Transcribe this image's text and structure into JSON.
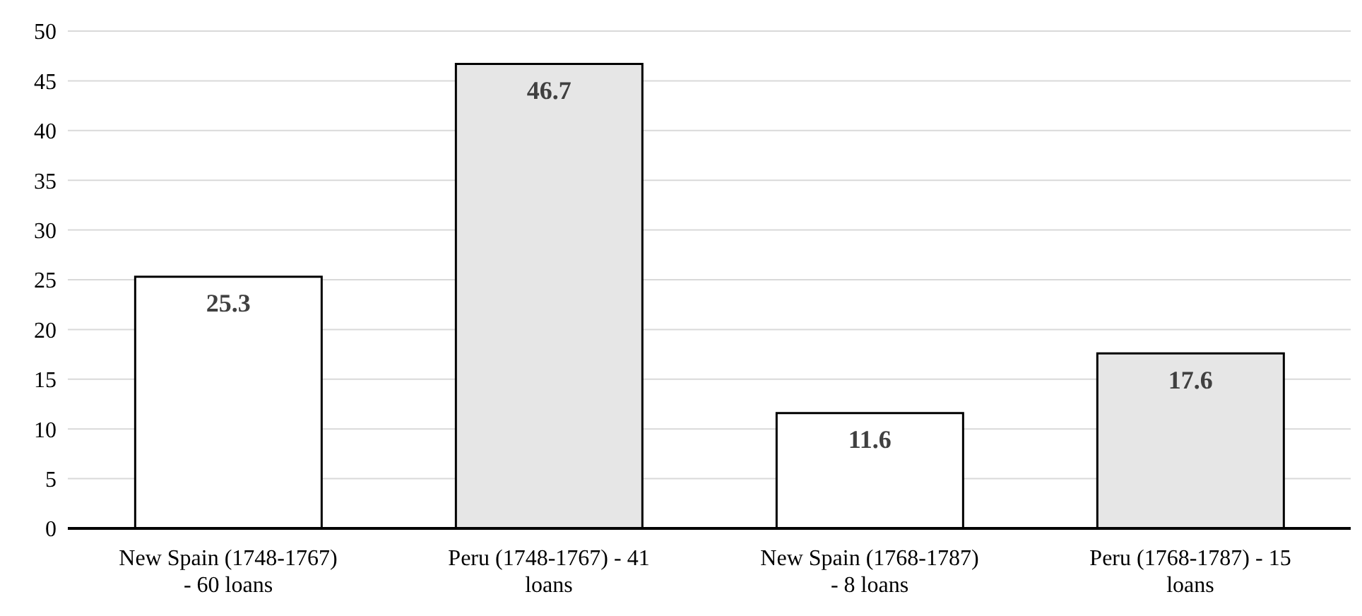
{
  "chart_data": {
    "type": "bar",
    "categories": [
      "New Spain (1748-1767) - 60 loans",
      "Peru (1748-1767) - 41 loans",
      "New Spain (1768-1787) - 8 loans",
      "Peru (1768-1787) - 15 loans"
    ],
    "values": [
      25.3,
      46.7,
      11.6,
      17.6
    ],
    "colors": [
      "#ffffff",
      "#e6e6e6",
      "#ffffff",
      "#e6e6e6"
    ],
    "ylim": [
      0,
      50
    ],
    "yticks": [
      0,
      5,
      10,
      15,
      20,
      25,
      30,
      35,
      40,
      45,
      50
    ],
    "grid": "y",
    "data_labels": true
  }
}
